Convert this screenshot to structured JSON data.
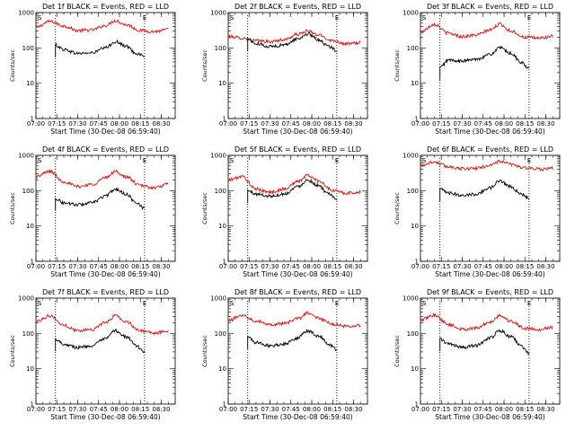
{
  "chart_data": [
    {
      "type": "line",
      "title": "Det 1f BLACK = Events, RED = LLD",
      "ylabel": "Counts/sec",
      "xlabel": "Start Time (30-Dec-08 06:59:40)",
      "xticks": [
        "07:00",
        "07:15",
        "07:30",
        "07:45",
        "08:00",
        "08:15",
        "08:30"
      ],
      "yticks": [
        "1",
        "10",
        "100",
        "1000"
      ],
      "ylim": [
        1,
        1000
      ],
      "yscale": "log",
      "markers": [
        "S",
        "E"
      ],
      "series": [
        {
          "name": "RED = LLD",
          "color": "#e01010",
          "t": [
            "07:00",
            "07:10",
            "07:20",
            "07:30",
            "07:40",
            "07:50",
            "07:57",
            "08:05",
            "08:15",
            "08:25",
            "08:35"
          ],
          "values": [
            380,
            560,
            420,
            310,
            320,
            430,
            590,
            450,
            310,
            290,
            330
          ]
        },
        {
          "name": "BLACK = Events",
          "color": "#000000",
          "t": [
            "07:14",
            "07:20",
            "07:30",
            "07:40",
            "07:50",
            "07:57",
            "08:05",
            "08:12",
            "08:18"
          ],
          "values": [
            120,
            90,
            70,
            72,
            100,
            150,
            110,
            70,
            60
          ]
        }
      ]
    },
    {
      "type": "line",
      "title": "Det 2f BLACK = Events, RED = LLD",
      "ylabel": "Counts/sec",
      "xlabel": "Start Time (30-Dec-08 06:59:40)",
      "xticks": [
        "07:00",
        "07:15",
        "07:30",
        "07:45",
        "08:00",
        "08:15",
        "08:30"
      ],
      "yticks": [
        "1",
        "10",
        "100",
        "1000"
      ],
      "ylim": [
        1,
        1000
      ],
      "yscale": "log",
      "markers": [
        "S",
        "E"
      ],
      "series": [
        {
          "name": "RED = LLD",
          "color": "#e01010",
          "t": [
            "07:00",
            "07:10",
            "07:20",
            "07:30",
            "07:40",
            "07:50",
            "07:57",
            "08:05",
            "08:15",
            "08:25",
            "08:35"
          ],
          "values": [
            210,
            190,
            160,
            150,
            170,
            240,
            300,
            230,
            160,
            130,
            140
          ]
        },
        {
          "name": "BLACK = Events",
          "color": "#000000",
          "t": [
            "07:14",
            "07:20",
            "07:30",
            "07:40",
            "07:50",
            "07:57",
            "08:05",
            "08:12",
            "08:18"
          ],
          "values": [
            180,
            130,
            110,
            120,
            180,
            250,
            170,
            110,
            85
          ]
        }
      ]
    },
    {
      "type": "line",
      "title": "Det 3f BLACK = Events, RED = LLD",
      "ylabel": "Counts/sec",
      "xlabel": "Start Time (30-Dec-08 06:59:40)",
      "xticks": [
        "07:00",
        "07:15",
        "07:30",
        "07:45",
        "08:00",
        "08:15",
        "08:30"
      ],
      "yticks": [
        "1",
        "10",
        "100",
        "1000"
      ],
      "ylim": [
        1,
        1000
      ],
      "yscale": "log",
      "markers": [
        "S",
        "E"
      ],
      "series": [
        {
          "name": "RED = LLD",
          "color": "#e01010",
          "t": [
            "07:00",
            "07:10",
            "07:20",
            "07:30",
            "07:40",
            "07:50",
            "07:57",
            "08:05",
            "08:15",
            "08:25",
            "08:35"
          ],
          "values": [
            280,
            470,
            260,
            210,
            230,
            320,
            470,
            300,
            200,
            190,
            210
          ]
        },
        {
          "name": "BLACK = Events",
          "color": "#000000",
          "t": [
            "07:14",
            "07:20",
            "07:30",
            "07:40",
            "07:50",
            "07:57",
            "08:05",
            "08:12",
            "08:18"
          ],
          "values": [
            28,
            45,
            42,
            48,
            65,
            100,
            70,
            40,
            25
          ]
        }
      ]
    },
    {
      "type": "line",
      "title": "Det 4f BLACK = Events, RED = LLD",
      "ylabel": "Counts/sec",
      "xlabel": "Start Time (30-Dec-08 06:59:40)",
      "xticks": [
        "07:00",
        "07:15",
        "07:30",
        "07:45",
        "08:00",
        "08:15",
        "08:30"
      ],
      "yticks": [
        "1",
        "10",
        "100",
        "1000"
      ],
      "ylim": [
        1,
        1000
      ],
      "yscale": "log",
      "markers": [
        "S",
        "E"
      ],
      "series": [
        {
          "name": "RED = LLD",
          "color": "#e01010",
          "t": [
            "07:00",
            "07:10",
            "07:20",
            "07:30",
            "07:40",
            "07:50",
            "07:57",
            "08:05",
            "08:15",
            "08:25",
            "08:35"
          ],
          "values": [
            250,
            350,
            180,
            130,
            150,
            230,
            350,
            240,
            140,
            120,
            150
          ]
        },
        {
          "name": "BLACK = Events",
          "color": "#000000",
          "t": [
            "07:14",
            "07:20",
            "07:30",
            "07:40",
            "07:50",
            "07:57",
            "08:05",
            "08:12",
            "08:18"
          ],
          "values": [
            60,
            45,
            40,
            45,
            70,
            110,
            80,
            45,
            32
          ]
        }
      ]
    },
    {
      "type": "line",
      "title": "Det 5f BLACK = Events, RED = LLD",
      "ylabel": "Counts/sec",
      "xlabel": "Start Time (30-Dec-08 06:59:40)",
      "xticks": [
        "07:00",
        "07:15",
        "07:30",
        "07:45",
        "08:00",
        "08:15",
        "08:30"
      ],
      "yticks": [
        "1",
        "10",
        "100",
        "1000"
      ],
      "ylim": [
        1,
        1000
      ],
      "yscale": "log",
      "markers": [
        "S",
        "E"
      ],
      "series": [
        {
          "name": "RED = LLD",
          "color": "#e01010",
          "t": [
            "07:00",
            "07:10",
            "07:20",
            "07:30",
            "07:40",
            "07:50",
            "07:57",
            "08:05",
            "08:15",
            "08:25",
            "08:35"
          ],
          "values": [
            200,
            250,
            110,
            90,
            110,
            180,
            270,
            190,
            100,
            85,
            90
          ]
        },
        {
          "name": "BLACK = Events",
          "color": "#000000",
          "t": [
            "07:14",
            "07:20",
            "07:30",
            "07:40",
            "07:50",
            "07:57",
            "08:05",
            "08:12",
            "08:18"
          ],
          "values": [
            100,
            80,
            70,
            80,
            130,
            200,
            140,
            80,
            55
          ]
        }
      ]
    },
    {
      "type": "line",
      "title": "Det 6f BLACK = Events, RED = LLD",
      "ylabel": "Counts/sec",
      "xlabel": "Start Time (30-Dec-08 06:59:40)",
      "xticks": [
        "07:00",
        "07:15",
        "07:30",
        "07:45",
        "08:00",
        "08:15",
        "08:30"
      ],
      "yticks": [
        "1",
        "10",
        "100",
        "1000"
      ],
      "ylim": [
        1,
        1000
      ],
      "yscale": "log",
      "markers": [
        "S",
        "E"
      ],
      "series": [
        {
          "name": "RED = LLD",
          "color": "#e01010",
          "t": [
            "07:00",
            "07:10",
            "07:20",
            "07:30",
            "07:40",
            "07:50",
            "07:57",
            "08:05",
            "08:15",
            "08:25",
            "08:35"
          ],
          "values": [
            520,
            650,
            480,
            420,
            430,
            520,
            680,
            560,
            440,
            400,
            430
          ]
        },
        {
          "name": "BLACK = Events",
          "color": "#000000",
          "t": [
            "07:14",
            "07:20",
            "07:30",
            "07:40",
            "07:50",
            "07:57",
            "08:05",
            "08:12",
            "08:18"
          ],
          "values": [
            110,
            85,
            75,
            80,
            120,
            190,
            130,
            80,
            60
          ]
        }
      ]
    },
    {
      "type": "line",
      "title": "Det 7f BLACK = Events, RED = LLD",
      "ylabel": "Counts/sec",
      "xlabel": "Start Time (30-Dec-08 06:59:40)",
      "xticks": [
        "07:00",
        "07:15",
        "07:30",
        "07:45",
        "08:00",
        "08:15",
        "08:30"
      ],
      "yticks": [
        "1",
        "10",
        "100",
        "1000"
      ],
      "ylim": [
        1,
        1000
      ],
      "yscale": "log",
      "markers": [
        "S",
        "E"
      ],
      "series": [
        {
          "name": "RED = LLD",
          "color": "#e01010",
          "t": [
            "07:00",
            "07:10",
            "07:20",
            "07:30",
            "07:40",
            "07:50",
            "07:57",
            "08:05",
            "08:15",
            "08:25",
            "08:35"
          ],
          "values": [
            220,
            320,
            170,
            120,
            130,
            200,
            320,
            210,
            120,
            100,
            120
          ]
        },
        {
          "name": "BLACK = Events",
          "color": "#000000",
          "t": [
            "07:14",
            "07:20",
            "07:30",
            "07:40",
            "07:50",
            "07:57",
            "08:05",
            "08:12",
            "08:18"
          ],
          "values": [
            70,
            50,
            40,
            45,
            70,
            120,
            80,
            45,
            30
          ]
        }
      ]
    },
    {
      "type": "line",
      "title": "Det 8f BLACK = Events, RED = LLD",
      "ylabel": "Counts/sec",
      "xlabel": "Start Time (30-Dec-08 06:59:40)",
      "xticks": [
        "07:00",
        "07:15",
        "07:30",
        "07:45",
        "08:00",
        "08:15",
        "08:30"
      ],
      "yticks": [
        "1",
        "10",
        "100",
        "1000"
      ],
      "ylim": [
        1,
        1000
      ],
      "yscale": "log",
      "markers": [
        "S",
        "E"
      ],
      "series": [
        {
          "name": "RED = LLD",
          "color": "#e01010",
          "t": [
            "07:00",
            "07:10",
            "07:20",
            "07:30",
            "07:40",
            "07:50",
            "07:57",
            "08:05",
            "08:15",
            "08:25",
            "08:35"
          ],
          "values": [
            230,
            330,
            230,
            180,
            190,
            260,
            380,
            270,
            180,
            160,
            170
          ]
        },
        {
          "name": "BLACK = Events",
          "color": "#000000",
          "t": [
            "07:14",
            "07:20",
            "07:30",
            "07:40",
            "07:50",
            "07:57",
            "08:05",
            "08:12",
            "08:18"
          ],
          "values": [
            80,
            55,
            45,
            50,
            75,
            120,
            85,
            50,
            35
          ]
        }
      ]
    },
    {
      "type": "line",
      "title": "Det 9f BLACK = Events, RED = LLD",
      "ylabel": "Counts/sec",
      "xlabel": "Start Time (30-Dec-08 06:59:40)",
      "xticks": [
        "07:00",
        "07:15",
        "07:30",
        "07:45",
        "08:00",
        "08:15",
        "08:30"
      ],
      "yticks": [
        "1",
        "10",
        "100",
        "1000"
      ],
      "ylim": [
        1,
        1000
      ],
      "yscale": "log",
      "markers": [
        "S",
        "E"
      ],
      "series": [
        {
          "name": "RED = LLD",
          "color": "#e01010",
          "t": [
            "07:00",
            "07:10",
            "07:20",
            "07:30",
            "07:40",
            "07:50",
            "07:57",
            "08:05",
            "08:15",
            "08:25",
            "08:35"
          ],
          "values": [
            240,
            330,
            180,
            130,
            140,
            210,
            320,
            220,
            140,
            130,
            150
          ]
        },
        {
          "name": "BLACK = Events",
          "color": "#000000",
          "t": [
            "07:14",
            "07:20",
            "07:30",
            "07:40",
            "07:50",
            "07:57",
            "08:05",
            "08:12",
            "08:18"
          ],
          "values": [
            70,
            50,
            40,
            45,
            75,
            120,
            80,
            45,
            28
          ]
        }
      ]
    }
  ]
}
